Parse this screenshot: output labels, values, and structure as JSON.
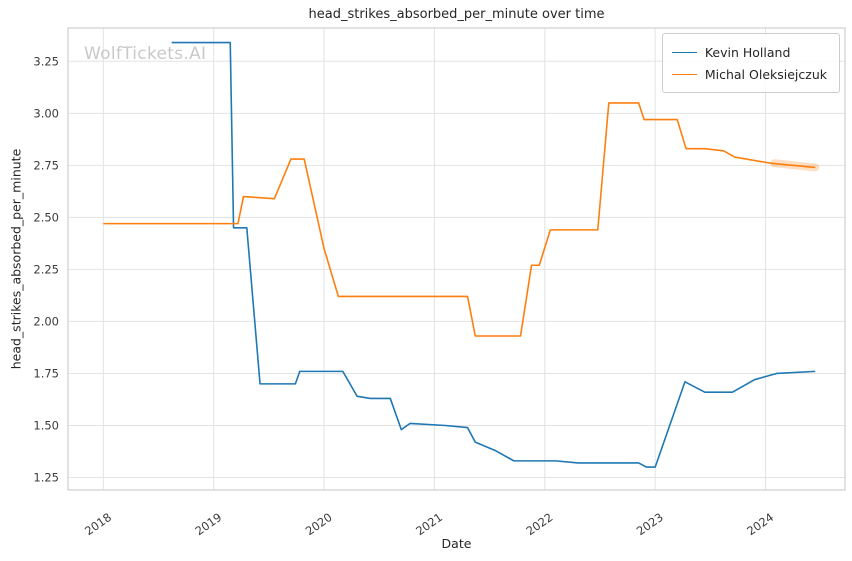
{
  "watermark": "WolfTickets.AI",
  "chart_data": {
    "type": "line",
    "title": "head_strikes_absorbed_per_minute over time",
    "xlabel": "Date",
    "ylabel": "head_strikes_absorbed_per_minute",
    "grid": true,
    "legend_position": "upper right",
    "xlim": [
      2017.68,
      2024.72
    ],
    "ylim": [
      1.19,
      3.41
    ],
    "x_tick_values": [
      2018,
      2019,
      2020,
      2021,
      2022,
      2023,
      2024
    ],
    "x_tick_labels": [
      "2018",
      "2019",
      "2020",
      "2021",
      "2022",
      "2023",
      "2024"
    ],
    "y_tick_values": [
      1.25,
      1.5,
      1.75,
      2.0,
      2.25,
      2.5,
      2.75,
      3.0,
      3.25
    ],
    "y_tick_labels": [
      "1.25",
      "1.50",
      "1.75",
      "2.00",
      "2.25",
      "2.50",
      "2.75",
      "3.00",
      "3.25"
    ],
    "colors": {
      "grid": "#e3e3e3",
      "spine": "#cfcfcf",
      "tick_text": "#3b3b3b",
      "background": "#ffffff"
    },
    "series": [
      {
        "name": "Kevin Holland",
        "color": "#1f77b4",
        "points": [
          [
            2018.62,
            3.34
          ],
          [
            2019.15,
            3.34
          ],
          [
            2019.18,
            2.45
          ],
          [
            2019.3,
            2.45
          ],
          [
            2019.42,
            1.7
          ],
          [
            2019.74,
            1.7
          ],
          [
            2019.78,
            1.76
          ],
          [
            2020.17,
            1.76
          ],
          [
            2020.3,
            1.64
          ],
          [
            2020.42,
            1.63
          ],
          [
            2020.6,
            1.63
          ],
          [
            2020.7,
            1.48
          ],
          [
            2020.78,
            1.51
          ],
          [
            2021.1,
            1.5
          ],
          [
            2021.3,
            1.49
          ],
          [
            2021.37,
            1.42
          ],
          [
            2021.55,
            1.38
          ],
          [
            2021.72,
            1.33
          ],
          [
            2022.1,
            1.33
          ],
          [
            2022.3,
            1.32
          ],
          [
            2022.85,
            1.32
          ],
          [
            2022.92,
            1.3
          ],
          [
            2023.0,
            1.3
          ],
          [
            2023.27,
            1.71
          ],
          [
            2023.45,
            1.66
          ],
          [
            2023.7,
            1.66
          ],
          [
            2023.9,
            1.72
          ],
          [
            2024.1,
            1.75
          ],
          [
            2024.45,
            1.76
          ]
        ]
      },
      {
        "name": "Michal Oleksiejczuk",
        "color": "#ff7f0e",
        "points": [
          [
            2018.0,
            2.47
          ],
          [
            2019.22,
            2.47
          ],
          [
            2019.27,
            2.6
          ],
          [
            2019.55,
            2.59
          ],
          [
            2019.7,
            2.78
          ],
          [
            2019.82,
            2.78
          ],
          [
            2020.0,
            2.35
          ],
          [
            2020.13,
            2.12
          ],
          [
            2021.3,
            2.12
          ],
          [
            2021.37,
            1.93
          ],
          [
            2021.78,
            1.93
          ],
          [
            2021.88,
            2.27
          ],
          [
            2021.95,
            2.27
          ],
          [
            2022.05,
            2.44
          ],
          [
            2022.48,
            2.44
          ],
          [
            2022.58,
            3.05
          ],
          [
            2022.85,
            3.05
          ],
          [
            2022.9,
            2.97
          ],
          [
            2023.2,
            2.97
          ],
          [
            2023.28,
            2.83
          ],
          [
            2023.45,
            2.83
          ],
          [
            2023.62,
            2.82
          ],
          [
            2023.72,
            2.79
          ],
          [
            2024.05,
            2.76
          ],
          [
            2024.45,
            2.74
          ]
        ],
        "highlight_segment": {
          "points": [
            [
              2024.08,
              2.76
            ],
            [
              2024.45,
              2.74
            ]
          ],
          "color": "#ff7f0e",
          "opacity": 0.25,
          "width": 8
        }
      }
    ]
  }
}
